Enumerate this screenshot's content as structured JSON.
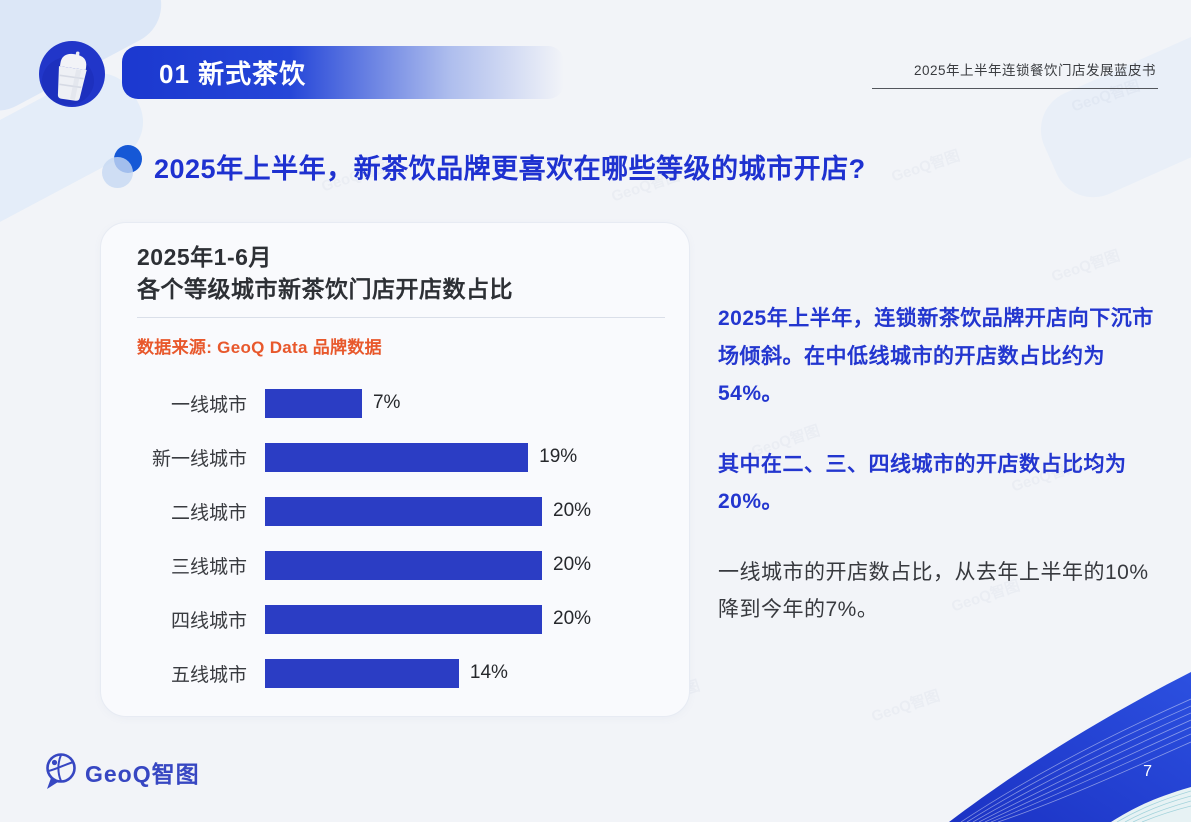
{
  "header": {
    "section_title": "01 新式茶饮",
    "book_title": "2025年上半年连锁餐饮门店发展蓝皮书"
  },
  "title": "2025年上半年，新茶饮品牌更喜欢在哪些等级的城市开店?",
  "card": {
    "title_line1": "2025年1-6月",
    "title_line2": "各个等级城市新茶饮门店开店数占比",
    "source": "数据来源: GeoQ Data 品牌数据"
  },
  "chart_data": {
    "type": "bar",
    "orientation": "horizontal",
    "title": "2025年1-6月 各个等级城市新茶饮门店开店数占比",
    "categories": [
      "一线城市",
      "新一线城市",
      "二线城市",
      "三线城市",
      "四线城市",
      "五线城市"
    ],
    "values": [
      7,
      19,
      20,
      20,
      20,
      14
    ],
    "value_labels": [
      "7%",
      "19%",
      "20%",
      "20%",
      "20%",
      "14%"
    ],
    "unit": "%",
    "xlim": [
      0,
      20
    ],
    "bar_color": "#2b3dc4",
    "grid": false,
    "legend": "none"
  },
  "insights": {
    "p1": "2025年上半年，连锁新茶饮品牌开店向下沉市场倾斜。在中低线城市的开店数占比约为54%。",
    "p2": "其中在二、三、四线城市的开店数占比均为20%。",
    "p3": "一线城市的开店数占比，从去年上半年的10%降到今年的7%。"
  },
  "footer": {
    "logo_text": "GeoQ智图",
    "page_number": "7"
  },
  "watermark": "GeoQ智图",
  "colors": {
    "primary_blue": "#2336cf",
    "bar_blue": "#2b3dc4",
    "banner_blue": "#1b38cf",
    "accent_orange": "#e8582c",
    "dark_text": "#2d3035",
    "page_bg": "#f2f4f8",
    "card_bg": "#f9fafd"
  }
}
